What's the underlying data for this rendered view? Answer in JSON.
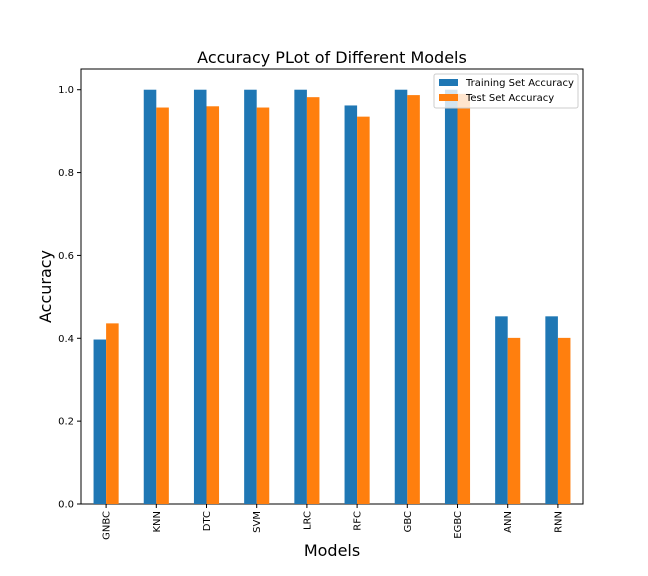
{
  "chart_data": {
    "type": "bar",
    "title": "Accuracy PLot of Different Models",
    "xlabel": "Models",
    "ylabel": "Accuracy",
    "categories": [
      "GNBC",
      "KNN",
      "DTC",
      "SVM",
      "LRC",
      "RFC",
      "GBC",
      "EGBC",
      "ANN",
      "RNN"
    ],
    "series": [
      {
        "name": "Training Set Accuracy",
        "color": "#1f77b4",
        "values": [
          0.397,
          1.0,
          1.0,
          1.0,
          1.0,
          0.962,
          1.0,
          1.0,
          0.453,
          0.453
        ]
      },
      {
        "name": "Test Set Accuracy",
        "color": "#ff7f0e",
        "values": [
          0.436,
          0.957,
          0.96,
          0.957,
          0.982,
          0.935,
          0.987,
          0.99,
          0.401,
          0.401
        ]
      }
    ],
    "ylim": [
      0,
      1.05
    ],
    "yticks": [
      "0.0",
      "0.2",
      "0.4",
      "0.6",
      "0.8",
      "1.0"
    ],
    "legend_position": "top-right",
    "grid": false
  }
}
